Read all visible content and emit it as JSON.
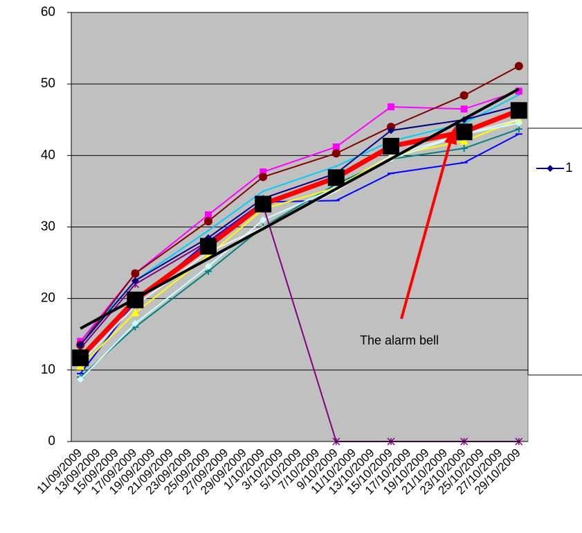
{
  "chart_data": {
    "type": "line",
    "categories": [
      "11/09/2009",
      "13/09/2009",
      "15/09/2009",
      "17/09/2009",
      "19/09/2009",
      "21/09/2009",
      "23/09/2009",
      "25/09/2009",
      "27/09/2009",
      "29/09/2009",
      "1/10/2009",
      "3/10/2009",
      "5/10/2009",
      "7/10/2009",
      "9/10/2009",
      "11/10/2009",
      "13/10/2009",
      "15/10/2009",
      "17/10/2009",
      "19/10/2009",
      "21/10/2009",
      "23/10/2009",
      "25/10/2009",
      "27/10/2009",
      "29/10/2009"
    ],
    "x": [
      "11/09/2009",
      "17/09/2009",
      "25/09/2009",
      "1/10/2009",
      "9/10/2009",
      "15/10/2009",
      "23/10/2009",
      "29/10/2009"
    ],
    "ylim": [
      0,
      60
    ],
    "yticks": [
      0,
      10,
      20,
      30,
      40,
      50,
      60
    ],
    "grid": true,
    "series": [
      {
        "color": "#0000ff",
        "marker": "dash",
        "values": [
          9.5,
          19.5,
          28,
          33.5,
          33.7,
          37.5,
          39,
          43
        ]
      },
      {
        "color": "#008080",
        "marker": "plus",
        "values": [
          9,
          16,
          23.8,
          30,
          36,
          39.5,
          41,
          43.7
        ]
      },
      {
        "color": "#ffff00",
        "marker": "triangle",
        "values": [
          10.5,
          18,
          26,
          32.5,
          35.5,
          40,
          42,
          45
        ]
      },
      {
        "color": "#f0f0f0",
        "marker": "none",
        "values": [
          11,
          19,
          26.5,
          30,
          35,
          40,
          43,
          45
        ]
      },
      {
        "color": "#ccffff",
        "marker": "diamond",
        "values": [
          8.7,
          16.5,
          24.5,
          31,
          35.5,
          39.5,
          43,
          44.5
        ]
      },
      {
        "color": "#00ccff",
        "marker": "none",
        "values": [
          14,
          22.5,
          29.5,
          35,
          38.5,
          42,
          44.5,
          48.5
        ]
      },
      {
        "color": "#800080",
        "marker": "star",
        "values": [
          13,
          22,
          28,
          33,
          0,
          0,
          0,
          0
        ]
      },
      {
        "color": "#ff00ff",
        "marker": "square",
        "values": [
          14,
          23.5,
          31.7,
          37.7,
          41.2,
          46.8,
          46.5,
          49
        ]
      },
      {
        "color": "#800000",
        "marker": "circle",
        "values": [
          13.5,
          23.5,
          30.8,
          37,
          40.3,
          44,
          48.4,
          52.5
        ]
      },
      {
        "name": "1",
        "color": "#000080",
        "marker": "diamond",
        "values": [
          13.5,
          22.5,
          28.5,
          34,
          37.5,
          43.5,
          45,
          47
        ]
      },
      {
        "color": "#ff0000",
        "width": 7,
        "marker": "bigsquare",
        "marker_color": "#000000",
        "values": [
          11.7,
          19.8,
          27.3,
          33.2,
          36.9,
          41.3,
          43.3,
          46.3
        ]
      }
    ],
    "trendline": {
      "color": "#000000",
      "x": [
        "11/09/2009",
        "29/10/2009"
      ],
      "values": [
        15.8,
        49.3
      ]
    },
    "annotation": "The alarm bell"
  }
}
